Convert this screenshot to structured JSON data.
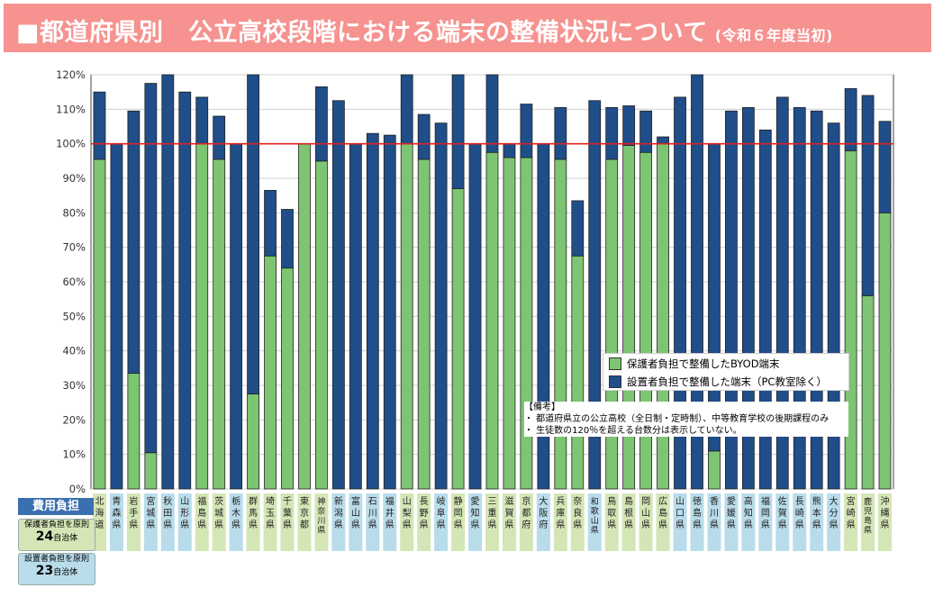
{
  "title": {
    "main": "■都道府県別　公立高校段階における端末の整備状況について",
    "sub": "(令和６年度当初)"
  },
  "colors": {
    "byod": "#7dc572",
    "school": "#1f4e89",
    "reference_line": "#e02020",
    "label_green": "#d4e6b5",
    "label_blue": "#b9dcea"
  },
  "legend": {
    "byod": "保護者負担で整備したBYOD端末",
    "school": "設置者負担で整備した端末（PC教室除く）"
  },
  "notes": {
    "heading": "【備考】",
    "line1": "・ 都道府県立の公立高校（全日制・定時制）、中等教育学校の後期課程のみ",
    "line2": "・ 生徒数の120％を超える台数分は表示していない。"
  },
  "cost": {
    "title": "費用負担",
    "guardian_label": "保護者負担を原則",
    "guardian_count": "24",
    "guardian_unit": "自治体",
    "founder_label": "設置者負担を原則",
    "founder_count": "23",
    "founder_unit": "自治体"
  },
  "chart_data": {
    "type": "bar",
    "stacked": true,
    "ylim": [
      0,
      120
    ],
    "y_ticks": [
      "0%",
      "10%",
      "20%",
      "30%",
      "40%",
      "50%",
      "60%",
      "70%",
      "80%",
      "90%",
      "100%",
      "110%",
      "120%"
    ],
    "reference_line": 100,
    "categories": [
      "北海道",
      "青森県",
      "岩手県",
      "宮城県",
      "秋田県",
      "山形県",
      "福島県",
      "茨城県",
      "栃木県",
      "群馬県",
      "埼玉県",
      "千葉県",
      "東京都",
      "神奈川県",
      "新潟県",
      "富山県",
      "石川県",
      "福井県",
      "山梨県",
      "長野県",
      "岐阜県",
      "静岡県",
      "愛知県",
      "三重県",
      "滋賀県",
      "京都府",
      "大阪府",
      "兵庫県",
      "奈良県",
      "和歌山県",
      "鳥取県",
      "島根県",
      "岡山県",
      "広島県",
      "山口県",
      "徳島県",
      "香川県",
      "愛媛県",
      "高知県",
      "福岡県",
      "佐賀県",
      "長崎県",
      "熊本県",
      "大分県",
      "宮崎県",
      "鹿児島県",
      "沖縄県"
    ],
    "label_color": [
      "green",
      "blue",
      "green",
      "blue",
      "blue",
      "blue",
      "green",
      "green",
      "blue",
      "green",
      "green",
      "green",
      "green",
      "green",
      "blue",
      "blue",
      "blue",
      "blue",
      "green",
      "green",
      "blue",
      "green",
      "blue",
      "green",
      "green",
      "green",
      "blue",
      "green",
      "green",
      "blue",
      "green",
      "green",
      "green",
      "green",
      "blue",
      "blue",
      "blue",
      "blue",
      "blue",
      "blue",
      "blue",
      "blue",
      "blue",
      "blue",
      "green",
      "green",
      "green"
    ],
    "series": [
      {
        "name": "保護者負担で整備したBYOD端末",
        "values": [
          95.5,
          0,
          33.5,
          10.5,
          0,
          0,
          100,
          95.5,
          0,
          27.5,
          67.5,
          64,
          100,
          95,
          0,
          0,
          0,
          0,
          100,
          95.5,
          0,
          87,
          0,
          97.5,
          96,
          96,
          0,
          95.5,
          67.5,
          0,
          95.5,
          99.5,
          97.5,
          100,
          0,
          0,
          11,
          0,
          0,
          0,
          0,
          0,
          0,
          0,
          98,
          56,
          80
        ]
      },
      {
        "name": "設置者負担で整備した端末（PC教室除く）",
        "values": [
          19.5,
          100,
          76,
          107,
          120,
          115,
          13.5,
          12.5,
          100,
          92.5,
          19,
          17,
          0,
          21.5,
          112.5,
          100,
          103,
          102.5,
          20,
          13,
          106,
          33,
          100,
          22.5,
          4,
          15.5,
          100,
          15,
          16,
          112.5,
          15,
          11.5,
          12,
          2,
          113.5,
          120,
          89,
          109.5,
          110.5,
          104,
          113.5,
          110.5,
          109.5,
          106,
          18,
          58,
          26.5
        ]
      }
    ]
  }
}
